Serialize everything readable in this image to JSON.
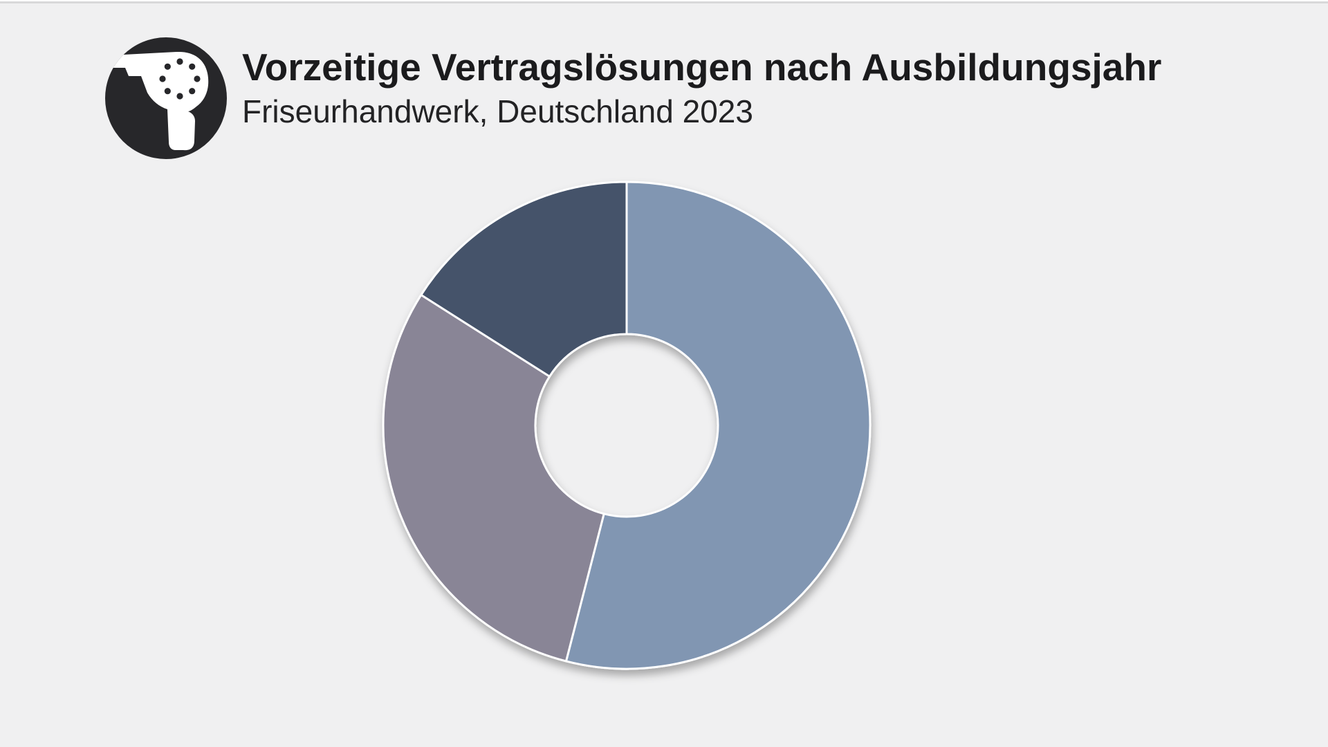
{
  "page": {
    "background_color": "#f0f0f1",
    "top_edge": {
      "line_top_color": "#ffffff",
      "line_bottom_color": "#d8d8d9"
    }
  },
  "header": {
    "title": "Vorzeitige Vertragslösungen nach Ausbildungsjahr",
    "subtitle": "Friseurhandwerk, Deutschland 2023",
    "logo": {
      "icon": "hairdryer-icon",
      "background_color": "#27272a",
      "foreground_color": "#ffffff"
    }
  },
  "chart_data": {
    "type": "pie",
    "variant": "donut",
    "title": "Vorzeitige Vertragslösungen nach Ausbildungsjahr",
    "subtitle": "Friseurhandwerk, Deutschland 2023",
    "start_angle_deg": 0,
    "direction": "clockwise",
    "inner_radius_ratio": 0.375,
    "slice_labels_visible": false,
    "legend": "none",
    "stroke_color": "#ffffff",
    "segments": [
      {
        "name": "segment-1",
        "value_pct": 54,
        "color": "#8196b2"
      },
      {
        "name": "segment-2",
        "value_pct": 30,
        "color": "#898596"
      },
      {
        "name": "segment-3",
        "value_pct": 16,
        "color": "#44526b"
      }
    ]
  }
}
